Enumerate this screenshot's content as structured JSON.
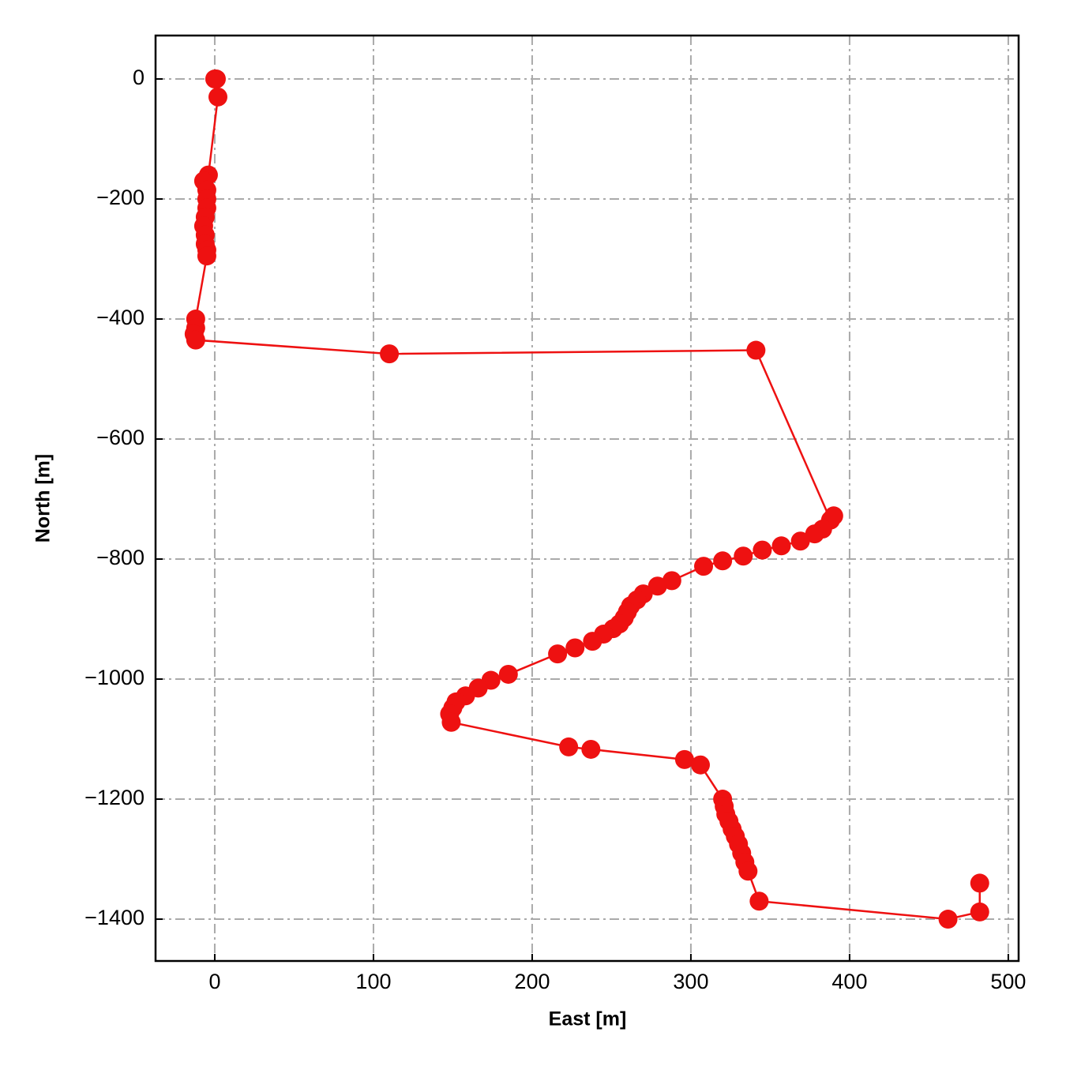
{
  "chart_data": {
    "type": "line",
    "xlabel": "East [m]",
    "ylabel": "North [m]",
    "color": "#ee1111",
    "marker": true,
    "grid": true,
    "x": [
      0,
      1,
      2,
      -4,
      -7,
      -5,
      -5,
      -5,
      -6,
      -7,
      -6,
      -6,
      -5,
      -5,
      -12,
      -12,
      -13,
      -12,
      110,
      341,
      388,
      390,
      383,
      378,
      369,
      357,
      345,
      333,
      320,
      308,
      288,
      279,
      270,
      266,
      262,
      260,
      258,
      255,
      251,
      245,
      238,
      227,
      216,
      185,
      174,
      166,
      158,
      152,
      150,
      148,
      149,
      223,
      237,
      296,
      306,
      320,
      321,
      322,
      324,
      326,
      328,
      330,
      332,
      334,
      336,
      343,
      462,
      482,
      482
    ],
    "values": [
      0,
      0,
      -30,
      -160,
      -170,
      -185,
      -200,
      -215,
      -230,
      -245,
      -260,
      -275,
      -285,
      -295,
      -400,
      -415,
      -425,
      -435,
      -458,
      -452,
      -735,
      -728,
      -750,
      -758,
      -770,
      -778,
      -785,
      -795,
      -803,
      -812,
      -836,
      -845,
      -858,
      -868,
      -878,
      -888,
      -898,
      -908,
      -916,
      -925,
      -937,
      -948,
      -958,
      -992,
      -1002,
      -1015,
      -1028,
      -1038,
      -1048,
      -1058,
      -1072,
      -1113,
      -1117,
      -1134,
      -1143,
      -1200,
      -1212,
      -1225,
      -1237,
      -1250,
      -1262,
      -1275,
      -1290,
      -1305,
      -1320,
      -1370,
      -1400,
      -1388,
      -1340
    ],
    "xlim": [
      -37.3,
      506.5
    ],
    "ylim": [
      -1469.7,
      72.4
    ],
    "xticks": [
      0,
      100,
      200,
      300,
      400,
      500
    ],
    "yticks": [
      0,
      {
        "value": -200,
        "label": "−200"
      },
      {
        "value": -400,
        "label": "−400"
      },
      {
        "value": -600,
        "label": "−600"
      },
      {
        "value": -800,
        "label": "−800"
      },
      {
        "value": -1000,
        "label": "−1000"
      },
      {
        "value": -1200,
        "label": "−1200"
      },
      {
        "value": -1400,
        "label": "−1400"
      }
    ]
  }
}
